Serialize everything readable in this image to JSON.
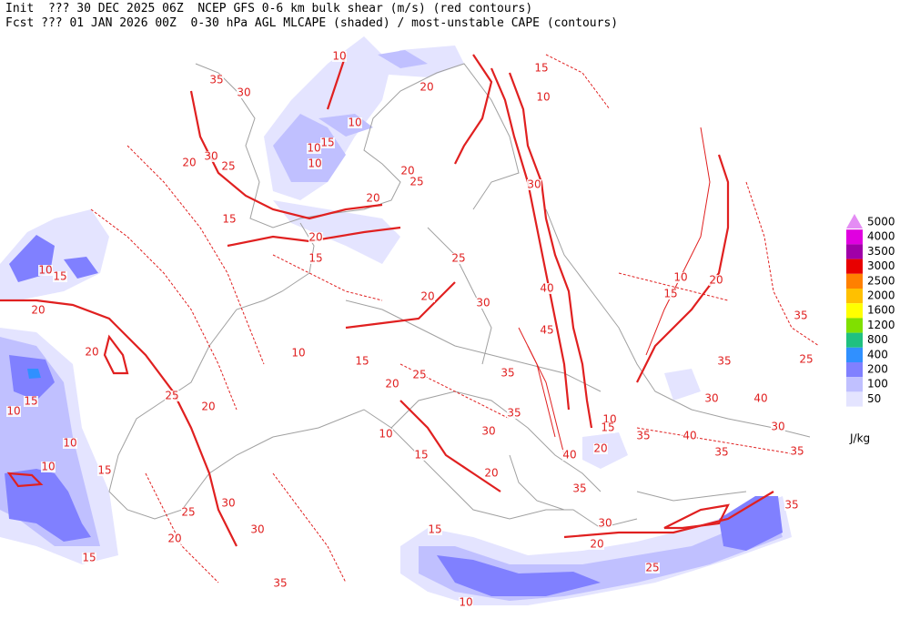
{
  "map": {
    "header": {
      "line1": "Init  ??? 30 DEC 2025 06Z  NCEP GFS 0-6 km bulk shear (m/s) (red contours)",
      "line2": "Fcst ??? 01 JAN 2026 00Z  0-30 hPa AGL MLCAPE (shaded) / most-unstable CAPE (contours)"
    },
    "legend": {
      "levels": [
        {
          "label": "5000",
          "color": "#e48cf4"
        },
        {
          "label": "4000",
          "color": "#e000e0"
        },
        {
          "label": "3500",
          "color": "#a000a8"
        },
        {
          "label": "3000",
          "color": "#e80000"
        },
        {
          "label": "2500",
          "color": "#ff8000"
        },
        {
          "label": "2000",
          "color": "#ffc000"
        },
        {
          "label": "1600",
          "color": "#ffff00"
        },
        {
          "label": "1200",
          "color": "#80e000"
        },
        {
          "label": "800",
          "color": "#20c080"
        },
        {
          "label": "400",
          "color": "#3090ff"
        },
        {
          "label": "200",
          "color": "#8080ff"
        },
        {
          "label": "100",
          "color": "#c0c0ff"
        },
        {
          "label": "50",
          "color": "#e4e4ff"
        }
      ],
      "unit": "J/kg"
    },
    "contour_labels": [
      10,
      35,
      30,
      15,
      10,
      20,
      10,
      10,
      15,
      10,
      30,
      25,
      20,
      20,
      25,
      20,
      30,
      15,
      20,
      15,
      25,
      10,
      15,
      20,
      20,
      20,
      30,
      40,
      45,
      10,
      15,
      20,
      35,
      10,
      15,
      35,
      20,
      25,
      35,
      30,
      40,
      25,
      35,
      10,
      15,
      25,
      20,
      10,
      15,
      35,
      40,
      35,
      30,
      35,
      10,
      30,
      15,
      40,
      20,
      10,
      10,
      15,
      20,
      35,
      30,
      25,
      30,
      20,
      15,
      30,
      20,
      25,
      15,
      35,
      10,
      35
    ]
  }
}
